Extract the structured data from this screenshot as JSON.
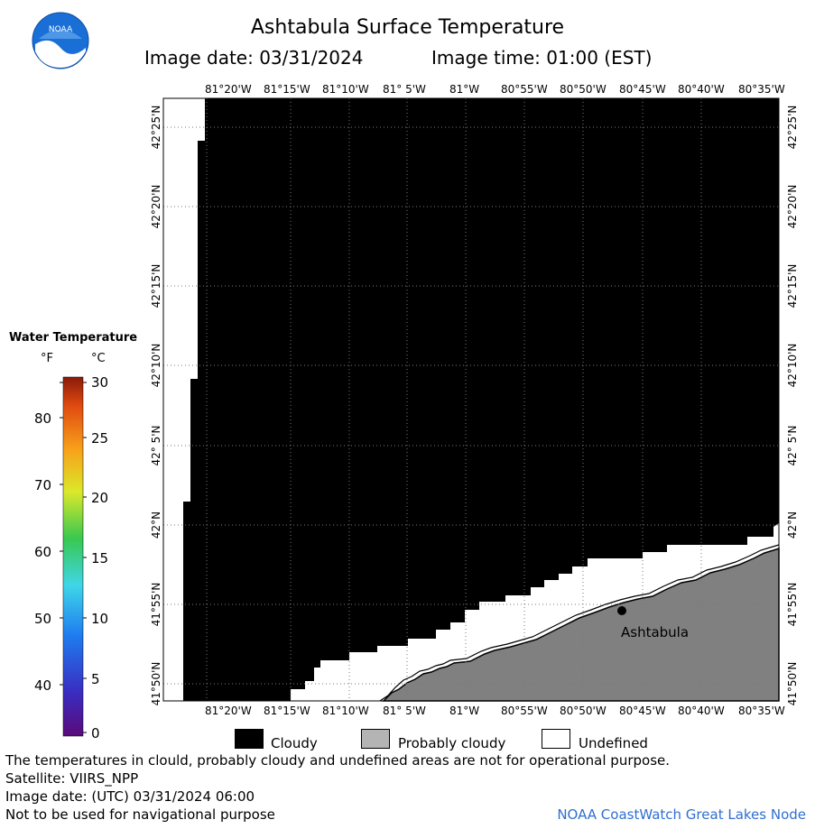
{
  "header": {
    "title": "Ashtabula Surface Temperature",
    "image_date": "Image date: 03/31/2024",
    "image_time": "Image time: 01:00 (EST)"
  },
  "logo": {
    "text": "NOAA"
  },
  "legend": {
    "title": "Water Temperature",
    "unit_f": "°F",
    "unit_c": "°C",
    "f_ticks": [
      "80",
      "70",
      "60",
      "50",
      "40"
    ],
    "c_ticks": [
      "30",
      "25",
      "20",
      "15",
      "10",
      "5",
      "0"
    ]
  },
  "map": {
    "lon_labels": [
      "81°20'W",
      "81°15'W",
      "81°10'W",
      "81° 5'W",
      "81°W",
      "80°55'W",
      "80°50'W",
      "80°45'W",
      "80°40'W",
      "80°35'W"
    ],
    "lat_labels": [
      "42°25'N",
      "42°20'N",
      "42°15'N",
      "42°10'N",
      "42° 5'N",
      "42°N",
      "41°55'N",
      "41°50'N"
    ],
    "city": "Ashtabula",
    "colors": {
      "cloudy": "#000000",
      "probably_cloudy": "#808080",
      "undefined": "#ffffff"
    }
  },
  "key": {
    "cloudy": "Cloudy",
    "probably_cloudy": "Probably cloudy",
    "undefined": "Undefined"
  },
  "footer": {
    "line1": "The temperatures in clould, probably cloudy and undefined areas are not for operational purpose.",
    "line2": "Satellite: VIIRS_NPP",
    "line3": "Image date: (UTC) 03/31/2024  06:00",
    "line4": "Not to be used for navigational purpose",
    "credit": "NOAA CoastWatch Great Lakes Node"
  }
}
